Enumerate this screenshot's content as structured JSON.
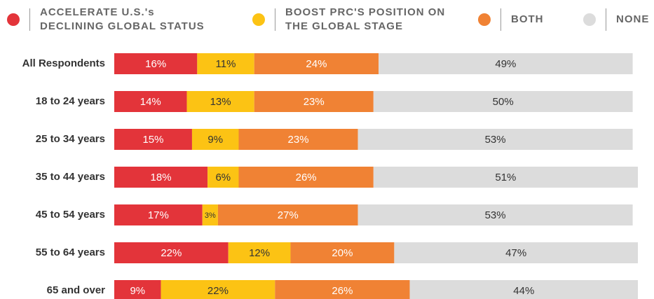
{
  "chart_data": {
    "type": "stacked-bar-horizontal",
    "categories": [
      "All Respondents",
      "18 to 24 years",
      "25 to 34 years",
      "35 to 44 years",
      "45 to 54 years",
      "55 to 64 years",
      "65 and over"
    ],
    "series": [
      {
        "name": "ACCELERATE U.S.'s DECLINING GLOBAL STATUS",
        "color": "#e3343a",
        "label_color": "#ffffff",
        "values": [
          16,
          14,
          15,
          18,
          17,
          22,
          9
        ],
        "value_labels": [
          "16%",
          "14%",
          "15%",
          "18%",
          "17%",
          "22%",
          "9%"
        ]
      },
      {
        "name": "BOOST PRC'S POSITION ON THE GLOBAL STAGE",
        "color": "#fcc314",
        "label_color": "#333333",
        "values": [
          11,
          13,
          9,
          6,
          3,
          12,
          22
        ],
        "value_labels": [
          "11%",
          "13%",
          "9%",
          "6%",
          "3%",
          "12%",
          "22%"
        ]
      },
      {
        "name": "BOTH",
        "color": "#f08234",
        "label_color": "#ffffff",
        "values": [
          24,
          23,
          23,
          26,
          27,
          20,
          26
        ],
        "value_labels": [
          "24%",
          "23%",
          "23%",
          "26%",
          "27%",
          "20%",
          "26%"
        ]
      },
      {
        "name": "NONE",
        "color": "#dcdcdc",
        "label_color": "#333333",
        "values": [
          49,
          50,
          53,
          51,
          53,
          47,
          44
        ],
        "value_labels": [
          "49%",
          "50%",
          "53%",
          "51%",
          "53%",
          "47%",
          "44%"
        ]
      }
    ]
  }
}
